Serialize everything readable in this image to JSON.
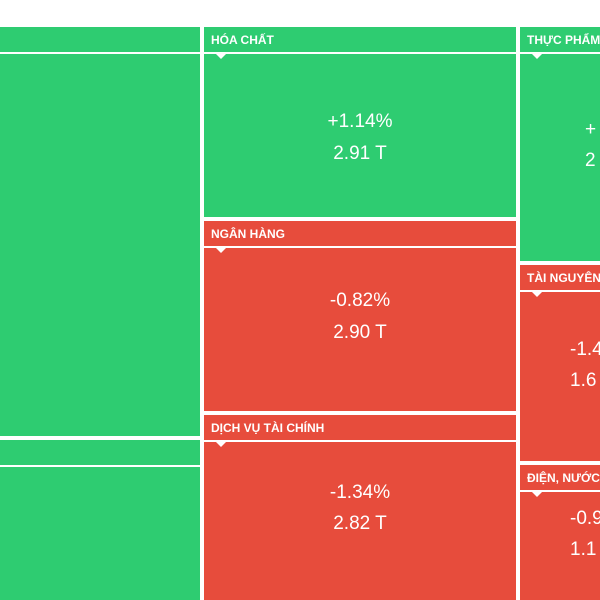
{
  "colors": {
    "up": "#2ecc71",
    "down": "#e74c3c",
    "border": "#ffffff"
  },
  "chart_data": {
    "type": "treemap",
    "sectors": [
      {
        "name": "",
        "change": "",
        "value": "",
        "direction": "up"
      },
      {
        "name": "",
        "change": "",
        "value": "",
        "direction": "up"
      },
      {
        "name": "HÓA CHẤT",
        "change": "+1.14%",
        "value": "2.91 T",
        "direction": "up"
      },
      {
        "name": "NGÂN HÀNG",
        "change": "-0.82%",
        "value": "2.90 T",
        "direction": "down"
      },
      {
        "name": "DỊCH VỤ TÀI CHÍNH",
        "change": "-1.34%",
        "value": "2.82 T",
        "direction": "down"
      },
      {
        "name": "THỰC PHẨM",
        "change": "+",
        "value": "2",
        "direction": "up"
      },
      {
        "name": "TÀI NGUYÊN",
        "change": "-1.4",
        "value": "1.6",
        "direction": "down"
      },
      {
        "name": "ĐIỆN, NƯỚC &",
        "change": "-0.9",
        "value": "1.1",
        "direction": "down"
      }
    ]
  }
}
